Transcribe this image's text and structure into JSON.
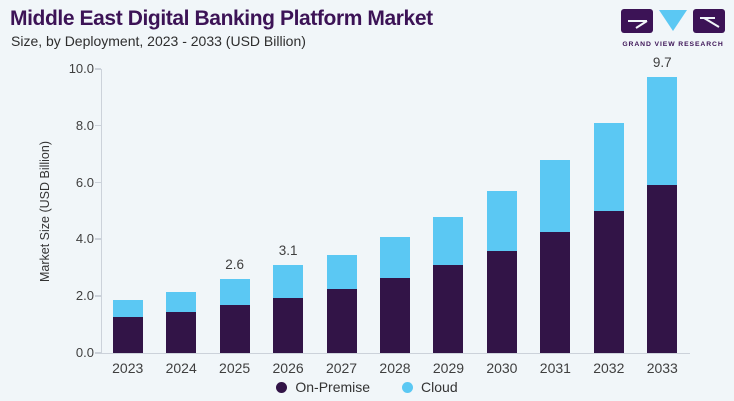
{
  "header": {
    "title": "Middle East Digital Banking Platform Market",
    "subtitle": "Size, by Deployment, 2023 - 2033 (USD Billion)"
  },
  "logo": {
    "text": "GRAND VIEW RESEARCH"
  },
  "colors": {
    "background": "#f1f6f9",
    "brand_purple": "#3c1356",
    "on_premise": "#321447",
    "cloud": "#5bc8f3",
    "axis_line": "#ccd2da",
    "label_text": "#3e3e3e"
  },
  "chart_data": {
    "type": "bar",
    "stacked": true,
    "title": "Middle East Digital Banking Platform Market",
    "subtitle": "Size, by Deployment, 2023 - 2033 (USD Billion)",
    "ylabel": "Market Size (USD Billion)",
    "xlabel": "",
    "ylim": [
      0,
      10
    ],
    "yticks": [
      "0.0",
      "2.0",
      "4.0",
      "6.0",
      "8.0",
      "10.0"
    ],
    "grid": false,
    "legend_position": "bottom",
    "categories": [
      "2023",
      "2024",
      "2025",
      "2026",
      "2027",
      "2028",
      "2029",
      "2030",
      "2031",
      "2032",
      "2033"
    ],
    "series": [
      {
        "name": "On-Premise",
        "color": "#321447",
        "values": [
          1.25,
          1.45,
          1.7,
          1.95,
          2.25,
          2.65,
          3.1,
          3.6,
          4.25,
          5.0,
          5.9
        ]
      },
      {
        "name": "Cloud",
        "color": "#5bc8f3",
        "values": [
          0.6,
          0.7,
          0.9,
          1.15,
          1.2,
          1.45,
          1.7,
          2.1,
          2.55,
          3.1,
          3.8
        ]
      }
    ],
    "totals": [
      1.85,
      2.15,
      2.6,
      3.1,
      3.45,
      4.1,
      4.8,
      5.7,
      6.8,
      8.1,
      9.7
    ],
    "bar_value_labels": [
      "",
      "",
      "2.6",
      "3.1",
      "",
      "",
      "",
      "",
      "",
      "",
      "9.7"
    ]
  }
}
